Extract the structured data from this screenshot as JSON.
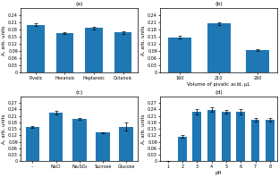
{
  "chart_data": [
    {
      "type": "bar",
      "title": "(a)",
      "categories": [
        "Pivalic",
        "Hexanoic",
        "Heptanoic",
        "Octanoic"
      ],
      "values": [
        0.2,
        0.165,
        0.187,
        0.168
      ],
      "errors": [
        0.006,
        0.005,
        0.006,
        0.005
      ],
      "ylabel": "A, arb. units",
      "ylim": [
        0,
        0.27
      ],
      "yticks": [
        0,
        0.03,
        0.06,
        0.09,
        0.12,
        0.15,
        0.18,
        0.21,
        0.24
      ]
    },
    {
      "type": "bar",
      "title": "(b)",
      "categories": [
        "160",
        "210",
        "260"
      ],
      "values": [
        0.148,
        0.205,
        0.095
      ],
      "errors": [
        0.005,
        0.005,
        0.005
      ],
      "ylabel": "A, arb. units",
      "xlabel": "Volume of pivalic acid, μL",
      "ylim": [
        0,
        0.27
      ],
      "yticks": [
        0,
        0.03,
        0.06,
        0.09,
        0.12,
        0.15,
        0.18,
        0.21,
        0.24
      ]
    },
    {
      "type": "bar",
      "title": "(c)",
      "categories": [
        "–",
        "NaCl",
        "Na₂SO₄",
        "Sucrose",
        "Glucose"
      ],
      "values": [
        0.158,
        0.225,
        0.196,
        0.132,
        0.16
      ],
      "errors": [
        0.005,
        0.008,
        0.006,
        0.004,
        0.018
      ],
      "ylabel": "A, arb. units",
      "ylim": [
        0,
        0.3
      ],
      "yticks": [
        0,
        0.03,
        0.06,
        0.09,
        0.12,
        0.15,
        0.18,
        0.21,
        0.24,
        0.27
      ]
    },
    {
      "type": "bar",
      "title": "(d)",
      "categories": [
        "1",
        "2",
        "3",
        "4",
        "5",
        "6",
        "7",
        "8"
      ],
      "values": [
        0.0,
        0.115,
        0.23,
        0.238,
        0.228,
        0.228,
        0.19,
        0.192
      ],
      "errors": [
        0.0,
        0.005,
        0.013,
        0.01,
        0.008,
        0.012,
        0.008,
        0.01
      ],
      "ylabel": "A, arb. units",
      "xlabel": "pH",
      "ylim": [
        0,
        0.3
      ],
      "yticks": [
        0,
        0.03,
        0.06,
        0.09,
        0.12,
        0.15,
        0.18,
        0.21,
        0.24,
        0.27
      ]
    }
  ]
}
